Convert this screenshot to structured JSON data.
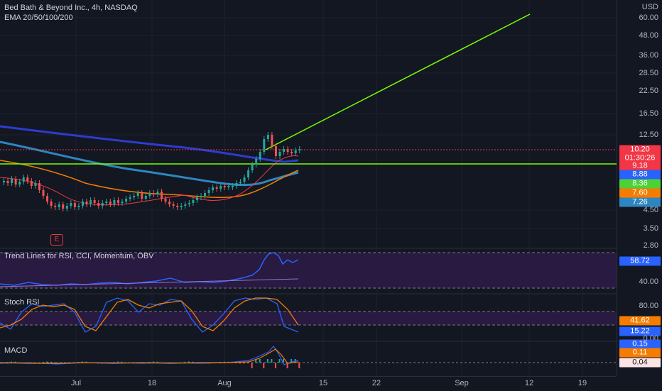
{
  "legend": {
    "title": "Bed Bath & Beyond Inc., 4h, NASDAQ",
    "ema_label": "EMA 20/50/100/200"
  },
  "panes": {
    "rsi_title": "Trend Lines for RSI, CCI, Momentum, OBV",
    "stoch_title": "Stoch RSI",
    "macd_title": "MACD"
  },
  "earnings_badge": "E",
  "price_scale": {
    "currency": "USD",
    "ticks": [
      "60.00",
      "48.00",
      "36.00",
      "28.50",
      "22.50",
      "16.50",
      "12.50",
      "4.50",
      "3.50",
      "2.80"
    ],
    "tags": [
      {
        "label": "10.20",
        "color": "#f23645"
      },
      {
        "label": "01:30:26",
        "color": "#f23645"
      },
      {
        "label": "9.18",
        "color": "#f23645"
      },
      {
        "label": "8.88",
        "color": "#2962ff"
      },
      {
        "label": "8.36",
        "color": "#4cd137"
      },
      {
        "label": "7.60",
        "color": "#f57c00"
      },
      {
        "label": "7.26",
        "color": "#2e86c1"
      }
    ]
  },
  "rsi_scale": {
    "tick": "40.00",
    "tag": {
      "label": "58.72",
      "color": "#2962ff"
    }
  },
  "stoch_scale": {
    "ticks": [
      "80.00",
      "0.00"
    ],
    "tags": [
      {
        "label": "41.62",
        "color": "#f57c00"
      },
      {
        "label": "15.22",
        "color": "#2962ff"
      }
    ]
  },
  "macd_scale": {
    "tags": [
      {
        "label": "0.15",
        "color": "#2962ff"
      },
      {
        "label": "0.11",
        "color": "#f57c00"
      },
      {
        "label": "0.04",
        "color": "#fce4e4",
        "text_color": "#131722"
      }
    ]
  },
  "time_axis": [
    "Jul",
    "18",
    "Aug",
    "15",
    "22",
    "Sep",
    "12",
    "19"
  ],
  "colors": {
    "background": "#131722",
    "up": "#26a69a",
    "down": "#ef5350",
    "ema20": "#f23645",
    "ema50": "#f57c00",
    "ema100": "#2e86c1",
    "ema200": "#2e3bd0",
    "trendline": "#76ff03",
    "rsi_band": "#2e1a47",
    "stoch_band": "#2e1a47"
  }
}
